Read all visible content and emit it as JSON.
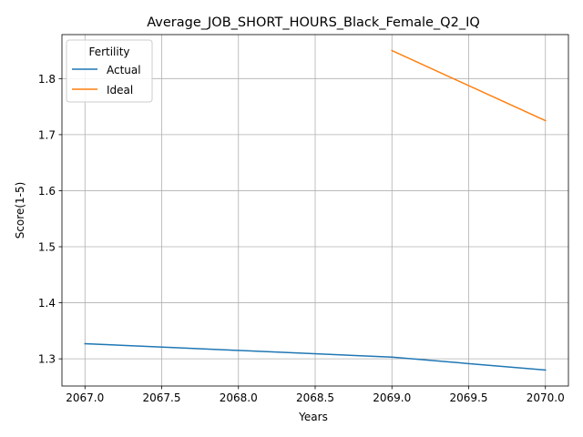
{
  "chart_data": {
    "type": "line",
    "title": "Average_JOB_SHORT_HOURS_Black_Female_Q2_IQ",
    "xlabel": "Years",
    "ylabel": "Score(1-5)",
    "xlim": [
      2066.85,
      2070.15
    ],
    "ylim": [
      1.2515,
      1.8785
    ],
    "xticks": [
      2067.0,
      2067.5,
      2068.0,
      2068.5,
      2069.0,
      2069.5,
      2070.0
    ],
    "xtick_labels": [
      "2067.0",
      "2067.5",
      "2068.0",
      "2068.5",
      "2069.0",
      "2069.5",
      "2070.0"
    ],
    "yticks": [
      1.3,
      1.4,
      1.5,
      1.6,
      1.7,
      1.8
    ],
    "ytick_labels": [
      "1.3",
      "1.4",
      "1.5",
      "1.6",
      "1.7",
      "1.8"
    ],
    "grid": true,
    "legend": {
      "title": "Fertility",
      "position": "top-left"
    },
    "series": [
      {
        "name": "Actual",
        "color": "#1f77b4",
        "x": [
          2067,
          2068,
          2069,
          2070
        ],
        "y": [
          1.327,
          1.315,
          1.303,
          1.28
        ]
      },
      {
        "name": "Ideal",
        "color": "#ff7f0e",
        "x": [
          2069,
          2070
        ],
        "y": [
          1.85,
          1.725
        ]
      }
    ]
  }
}
